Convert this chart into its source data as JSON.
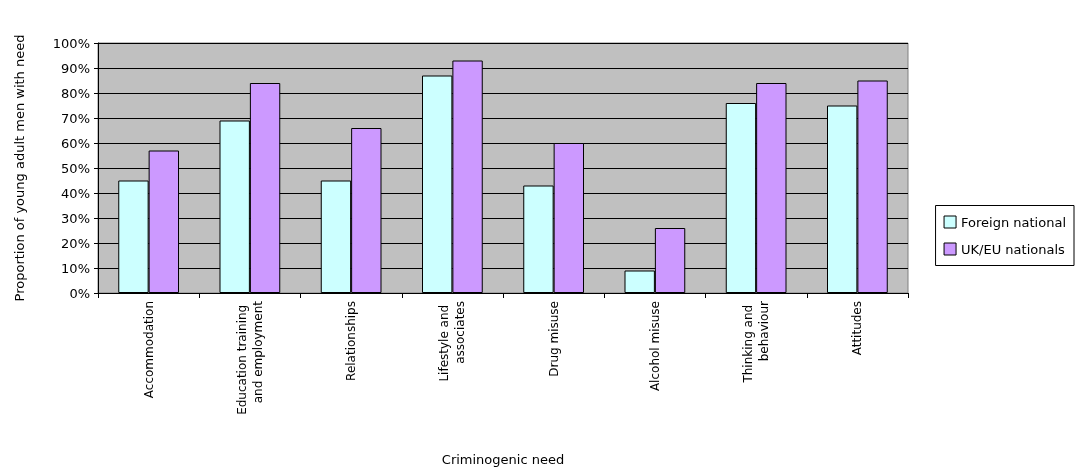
{
  "chart_data": {
    "type": "bar",
    "xlabel": "Criminogenic need",
    "ylabel": "Proportion of young adult men with need",
    "categories": [
      "Accommodation",
      "Education training and employment",
      "Relationships",
      "Lifestyle and associates",
      "Drug misuse",
      "Alcohol misuse",
      "Thinking and behaviour",
      "Attitudes"
    ],
    "series": [
      {
        "name": "Foreign national",
        "color": "#ccffff",
        "values": [
          45,
          69,
          45,
          87,
          43,
          9,
          76,
          75
        ]
      },
      {
        "name": "UK/EU nationals",
        "color": "#cc99ff",
        "values": [
          57,
          84,
          66,
          93,
          60,
          26,
          84,
          85
        ]
      }
    ],
    "ylim": [
      0,
      100
    ],
    "yticks": [
      {
        "value": 0,
        "label": "0%"
      },
      {
        "value": 10,
        "label": "10%"
      },
      {
        "value": 20,
        "label": "20%"
      },
      {
        "value": 30,
        "label": "30%"
      },
      {
        "value": 40,
        "label": "40%"
      },
      {
        "value": 50,
        "label": "50%"
      },
      {
        "value": 60,
        "label": "60%"
      },
      {
        "value": 70,
        "label": "70%"
      },
      {
        "value": 80,
        "label": "80%"
      },
      {
        "value": 90,
        "label": "90%"
      },
      {
        "value": 100,
        "label": "100%"
      }
    ],
    "grid": "y",
    "legend": "right"
  }
}
